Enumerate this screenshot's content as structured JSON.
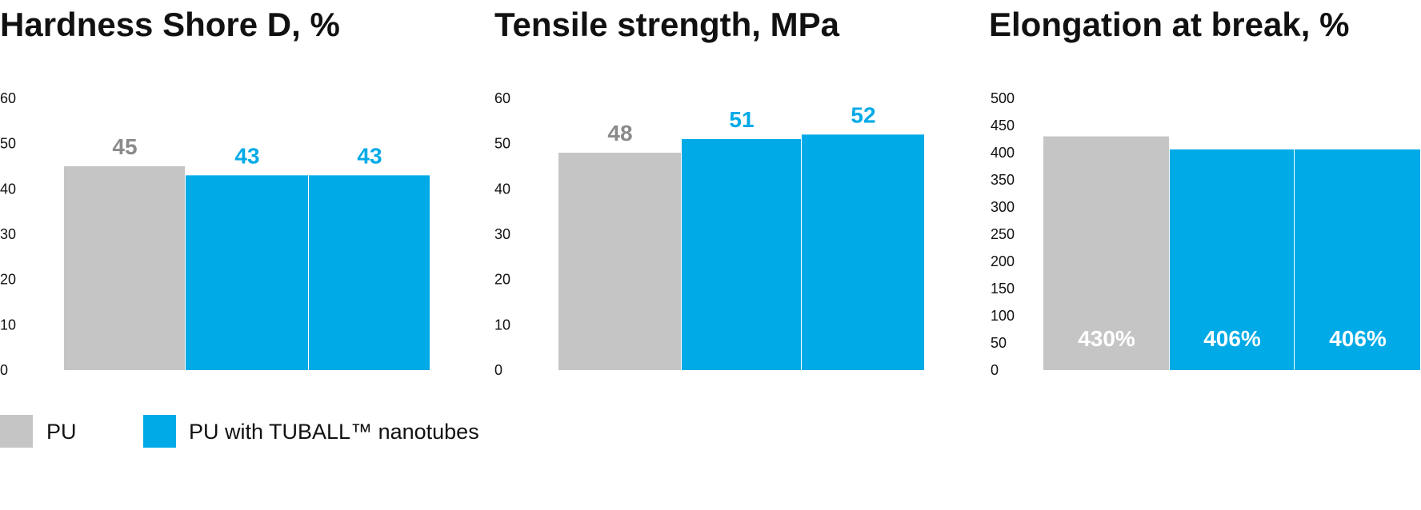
{
  "colors": {
    "pu": "#c4c5c4",
    "tuball": "#00aae7",
    "pu_label": "#8a8a8a",
    "inside_label": "#ffffff"
  },
  "legend": {
    "items": [
      {
        "label": "PU",
        "color": "#c4c5c4"
      },
      {
        "label": "PU with TUBALL™ nanotubes",
        "color": "#00aae7"
      }
    ]
  },
  "chart_data": [
    {
      "type": "bar",
      "title": "Hardness Shore D, %",
      "categories": [
        "PU",
        "PU with TUBALL™ nanotubes",
        "PU with TUBALL™ nanotubes"
      ],
      "values": [
        45,
        43,
        43
      ],
      "value_labels": [
        "45",
        "43",
        "43"
      ],
      "ylim": [
        0,
        60
      ],
      "yticks": [
        "0",
        "10",
        "20",
        "30",
        "40",
        "50",
        "60"
      ],
      "label_position": "above",
      "grid": false
    },
    {
      "type": "bar",
      "title": "Tensile strength, MPa",
      "categories": [
        "PU",
        "PU with TUBALL™ nanotubes",
        "PU with TUBALL™ nanotubes"
      ],
      "values": [
        48,
        51,
        52
      ],
      "value_labels": [
        "48",
        "51",
        "52"
      ],
      "ylim": [
        0,
        60
      ],
      "yticks": [
        "0",
        "10",
        "20",
        "30",
        "40",
        "50",
        "60"
      ],
      "label_position": "above",
      "grid": false
    },
    {
      "type": "bar",
      "title": "Elongation at break, %",
      "categories": [
        "PU",
        "PU with TUBALL™ nanotubes",
        "PU with TUBALL™ nanotubes"
      ],
      "values": [
        430,
        406,
        406
      ],
      "value_labels": [
        "430%",
        "406%",
        "406%"
      ],
      "ylim": [
        0,
        500
      ],
      "yticks": [
        "0",
        "50",
        "100",
        "150",
        "200",
        "250",
        "300",
        "350",
        "400",
        "450",
        "500"
      ],
      "label_position": "inside-bottom",
      "grid": false
    }
  ]
}
